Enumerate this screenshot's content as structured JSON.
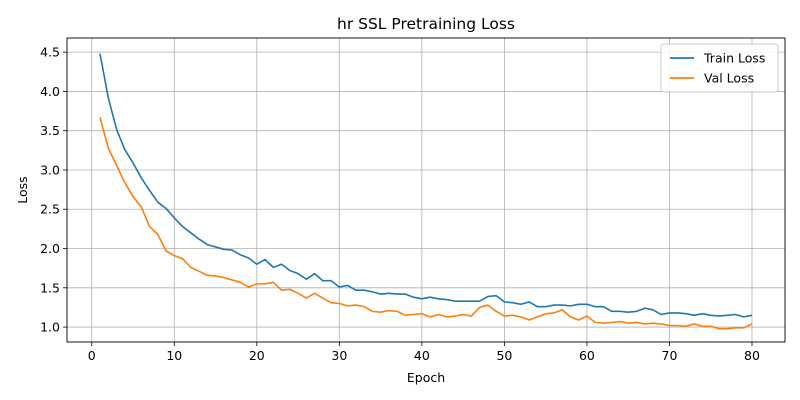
{
  "chart_data": {
    "type": "line",
    "title": "hr SSL Pretraining Loss",
    "xlabel": "Epoch",
    "ylabel": "Loss",
    "xlim": [
      -3,
      84
    ],
    "ylim": [
      0.81,
      4.68
    ],
    "xticks": [
      0,
      10,
      20,
      30,
      40,
      50,
      60,
      70,
      80
    ],
    "yticks": [
      1.0,
      1.5,
      2.0,
      2.5,
      3.0,
      3.5,
      4.0,
      4.5
    ],
    "ytick_labels": [
      "1.0",
      "1.5",
      "2.0",
      "2.5",
      "3.0",
      "3.5",
      "4.0",
      "4.5"
    ],
    "grid": true,
    "legend_position": "top-right",
    "x": [
      1,
      2,
      3,
      4,
      5,
      6,
      7,
      8,
      9,
      10,
      11,
      12,
      13,
      14,
      15,
      16,
      17,
      18,
      19,
      20,
      21,
      22,
      23,
      24,
      25,
      26,
      27,
      28,
      29,
      30,
      31,
      32,
      33,
      34,
      35,
      36,
      37,
      38,
      39,
      40,
      41,
      42,
      43,
      44,
      45,
      46,
      47,
      48,
      49,
      50,
      51,
      52,
      53,
      54,
      55,
      56,
      57,
      58,
      59,
      60,
      61,
      62,
      63,
      64,
      65,
      66,
      67,
      68,
      69,
      70,
      71,
      72,
      73,
      74,
      75,
      76,
      77,
      78,
      79,
      80
    ],
    "series": [
      {
        "name": "Train Loss",
        "color": "#1f77b4",
        "values": [
          4.48,
          3.92,
          3.52,
          3.26,
          3.09,
          2.9,
          2.74,
          2.59,
          2.51,
          2.39,
          2.28,
          2.2,
          2.12,
          2.05,
          2.02,
          1.99,
          1.98,
          1.92,
          1.88,
          1.8,
          1.86,
          1.76,
          1.8,
          1.72,
          1.68,
          1.61,
          1.68,
          1.59,
          1.59,
          1.51,
          1.53,
          1.47,
          1.47,
          1.45,
          1.42,
          1.43,
          1.42,
          1.42,
          1.38,
          1.36,
          1.38,
          1.36,
          1.35,
          1.33,
          1.33,
          1.33,
          1.33,
          1.39,
          1.4,
          1.32,
          1.31,
          1.29,
          1.32,
          1.26,
          1.26,
          1.28,
          1.28,
          1.27,
          1.29,
          1.29,
          1.26,
          1.26,
          1.2,
          1.2,
          1.19,
          1.2,
          1.24,
          1.22,
          1.16,
          1.18,
          1.18,
          1.17,
          1.15,
          1.17,
          1.15,
          1.14,
          1.15,
          1.16,
          1.13,
          1.15
        ]
      },
      {
        "name": "Val Loss",
        "color": "#ff7f0e",
        "values": [
          3.67,
          3.28,
          3.06,
          2.84,
          2.66,
          2.53,
          2.28,
          2.18,
          1.97,
          1.91,
          1.87,
          1.76,
          1.71,
          1.66,
          1.65,
          1.63,
          1.6,
          1.57,
          1.51,
          1.55,
          1.55,
          1.57,
          1.47,
          1.48,
          1.43,
          1.37,
          1.43,
          1.37,
          1.31,
          1.3,
          1.27,
          1.28,
          1.26,
          1.2,
          1.19,
          1.21,
          1.2,
          1.15,
          1.16,
          1.17,
          1.13,
          1.16,
          1.13,
          1.14,
          1.16,
          1.14,
          1.25,
          1.28,
          1.2,
          1.14,
          1.15,
          1.13,
          1.09,
          1.13,
          1.17,
          1.18,
          1.22,
          1.13,
          1.09,
          1.14,
          1.06,
          1.05,
          1.06,
          1.07,
          1.05,
          1.06,
          1.04,
          1.05,
          1.04,
          1.02,
          1.02,
          1.01,
          1.04,
          1.01,
          1.01,
          0.98,
          0.98,
          0.99,
          0.99,
          1.04
        ]
      }
    ]
  }
}
